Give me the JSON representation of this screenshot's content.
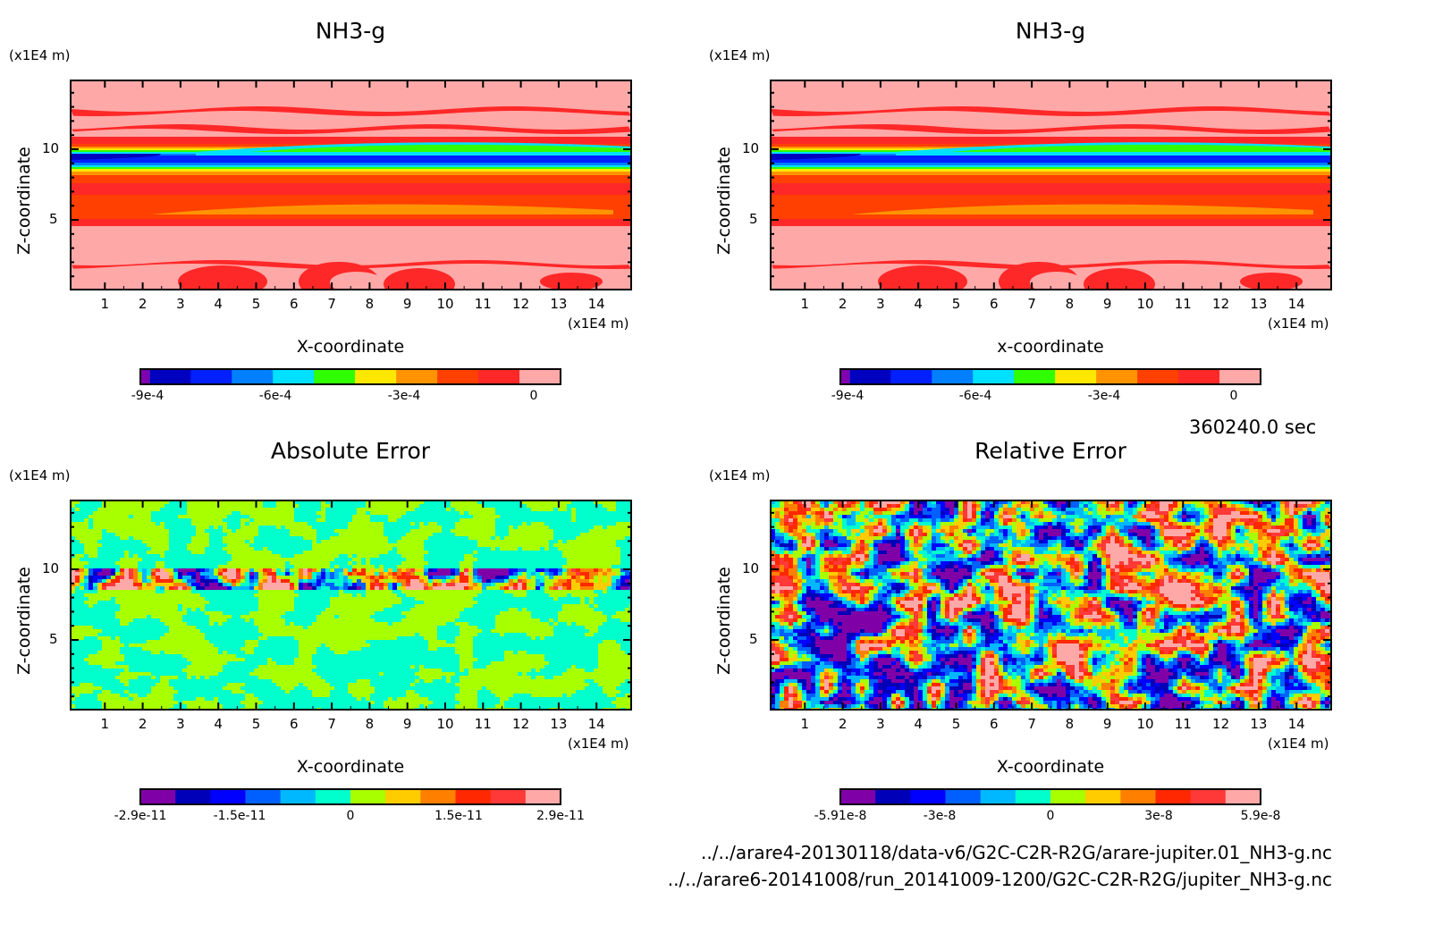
{
  "time_label": "360240.0 sec",
  "files": [
    "../../arare4-20130118/data-v6/G2C-C2R-R2G/arare-jupiter.01_NH3-g.nc",
    "../../arare6-20141008/run_20141009-1200/G2C-C2R-R2G/jupiter_NH3-g.nc"
  ],
  "colors_top": [
    "#8000B0",
    "#0000C0",
    "#0020FF",
    "#0080FF",
    "#00E0FF",
    "#30FF00",
    "#FFE800",
    "#FF9400",
    "#FF4000",
    "#FF2828",
    "#FFA8A8"
  ],
  "colors_err": [
    "#8000A8",
    "#0000B8",
    "#0000FF",
    "#0060FF",
    "#00B8FF",
    "#00FFCC",
    "#A8FF00",
    "#FFCC00",
    "#FF8000",
    "#FF2800",
    "#FF3838",
    "#FFA8A8"
  ],
  "chart_data": [
    {
      "type": "heatmap",
      "title": "NH3-g",
      "xlabel": "X-coordinate",
      "ylabel": "Z-coordinate",
      "x_unit": "(x1E4 m)",
      "y_unit": "(x1E4 m)",
      "xlim": [
        0,
        15
      ],
      "ylim": [
        0,
        15
      ],
      "xticks": [
        "1",
        "2",
        "3",
        "4",
        "5",
        "6",
        "7",
        "8",
        "9",
        "10",
        "11",
        "12",
        "13",
        "14"
      ],
      "yticks": [
        "5",
        "10"
      ],
      "colorbar_labels": [
        "-9e-4",
        "-6e-4",
        "-3e-4",
        "0"
      ],
      "colorbar_range": [
        -0.00095,
        5e-05
      ]
    },
    {
      "type": "heatmap",
      "title": "NH3-g",
      "xlabel": "x-coordinate",
      "ylabel": "Z-coordinate",
      "x_unit": "(x1E4 m)",
      "y_unit": "(x1E4 m)",
      "xlim": [
        0,
        15
      ],
      "ylim": [
        0,
        15
      ],
      "xticks": [
        "1",
        "2",
        "3",
        "4",
        "5",
        "6",
        "7",
        "8",
        "9",
        "10",
        "11",
        "12",
        "13",
        "14"
      ],
      "yticks": [
        "5",
        "10"
      ],
      "colorbar_labels": [
        "-9e-4",
        "-6e-4",
        "-3e-4",
        "0"
      ],
      "colorbar_range": [
        -0.00095,
        5e-05
      ]
    },
    {
      "type": "heatmap",
      "title": "Absolute Error",
      "xlabel": "X-coordinate",
      "ylabel": "Z-coordinate",
      "x_unit": "(x1E4 m)",
      "y_unit": "(x1E4 m)",
      "xlim": [
        0,
        15
      ],
      "ylim": [
        0,
        15
      ],
      "xticks": [
        "1",
        "2",
        "3",
        "4",
        "5",
        "6",
        "7",
        "8",
        "9",
        "10",
        "11",
        "12",
        "13",
        "14"
      ],
      "yticks": [
        "5",
        "10"
      ],
      "colorbar_labels": [
        "-2.9e-11",
        "-1.5e-11",
        "0",
        "1.5e-11",
        "2.9e-11"
      ],
      "colorbar_range": [
        -2.9e-11,
        2.9e-11
      ]
    },
    {
      "type": "heatmap",
      "title": "Relative Error",
      "xlabel": "X-coordinate",
      "ylabel": "Z-coordinate",
      "x_unit": "(x1E4 m)",
      "y_unit": "(x1E4 m)",
      "xlim": [
        0,
        15
      ],
      "ylim": [
        0,
        15
      ],
      "xticks": [
        "1",
        "2",
        "3",
        "4",
        "5",
        "6",
        "7",
        "8",
        "9",
        "10",
        "11",
        "12",
        "13",
        "14"
      ],
      "yticks": [
        "5",
        "10"
      ],
      "colorbar_labels": [
        "-5.91e-8",
        "-3e-8",
        "0",
        "3e-8",
        "5.9e-8"
      ],
      "colorbar_range": [
        -5.91e-08,
        5.9e-08
      ]
    }
  ]
}
